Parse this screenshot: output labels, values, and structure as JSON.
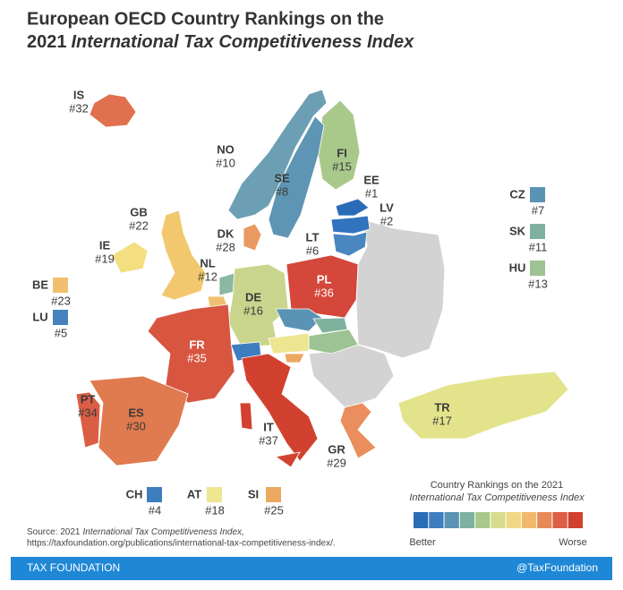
{
  "header": {
    "title_line1": "European OECD Country Rankings on the",
    "title_line2_prefix": "2021",
    "title_line2_italic": "International Tax Competitiveness Index"
  },
  "countries": [
    {
      "code": "IS",
      "rank": "#32",
      "color": "#e0704e"
    },
    {
      "code": "NO",
      "rank": "#10",
      "color": "#6c9fb3"
    },
    {
      "code": "FI",
      "rank": "#15",
      "color": "#a9c98b"
    },
    {
      "code": "SE",
      "rank": "#8",
      "color": "#5f95b4"
    },
    {
      "code": "EE",
      "rank": "#1",
      "color": "#2a6cb8"
    },
    {
      "code": "LV",
      "rank": "#2",
      "color": "#3273bd"
    },
    {
      "code": "LT",
      "rank": "#6",
      "color": "#4a86bf"
    },
    {
      "code": "DK",
      "rank": "#28",
      "color": "#ea9962"
    },
    {
      "code": "GB",
      "rank": "#22",
      "color": "#f2c76e"
    },
    {
      "code": "IE",
      "rank": "#19",
      "color": "#f3df80"
    },
    {
      "code": "NL",
      "rank": "#12",
      "color": "#8ab8a0"
    },
    {
      "code": "BE",
      "rank": "#23",
      "color": "#f0c070"
    },
    {
      "code": "LU",
      "rank": "#5",
      "color": "#4682bd"
    },
    {
      "code": "DE",
      "rank": "#16",
      "color": "#c9d58c"
    },
    {
      "code": "PL",
      "rank": "#36",
      "color": "#d4473a"
    },
    {
      "code": "CZ",
      "rank": "#7",
      "color": "#5a93b4"
    },
    {
      "code": "SK",
      "rank": "#11",
      "color": "#7fb19f"
    },
    {
      "code": "HU",
      "rank": "#13",
      "color": "#9dc293"
    },
    {
      "code": "FR",
      "rank": "#35",
      "color": "#d85540"
    },
    {
      "code": "CH",
      "rank": "#4",
      "color": "#3d7dc0"
    },
    {
      "code": "AT",
      "rank": "#18",
      "color": "#ede58f"
    },
    {
      "code": "SI",
      "rank": "#25",
      "color": "#eca760"
    },
    {
      "code": "IT",
      "rank": "#37",
      "color": "#d2412f"
    },
    {
      "code": "ES",
      "rank": "#30",
      "color": "#e07a4f"
    },
    {
      "code": "PT",
      "rank": "#34",
      "color": "#da5e44"
    },
    {
      "code": "GR",
      "rank": "#29",
      "color": "#e98e5c"
    },
    {
      "code": "TR",
      "rank": "#17",
      "color": "#e3e38c"
    }
  ],
  "legend": {
    "title_line1": "Country Rankings on the 2021",
    "title_line2": "International Tax Competitiveness Index",
    "colors": [
      "#2a6cb8",
      "#3d7dc0",
      "#5a93b4",
      "#7fb19f",
      "#a9c98b",
      "#d6dc8c",
      "#f0d880",
      "#f0b96c",
      "#e68a58",
      "#dc5f44",
      "#d13f2e"
    ],
    "low_label": "Better",
    "high_label": "Worse"
  },
  "source": {
    "prefix": "Source: 2021",
    "italic": "International Tax Competitiveness Index,",
    "url": "https://taxfoundation.org/publications/international-tax-competitiveness-index/."
  },
  "footer": {
    "left": "TAX FOUNDATION",
    "right": "@TaxFoundation"
  }
}
